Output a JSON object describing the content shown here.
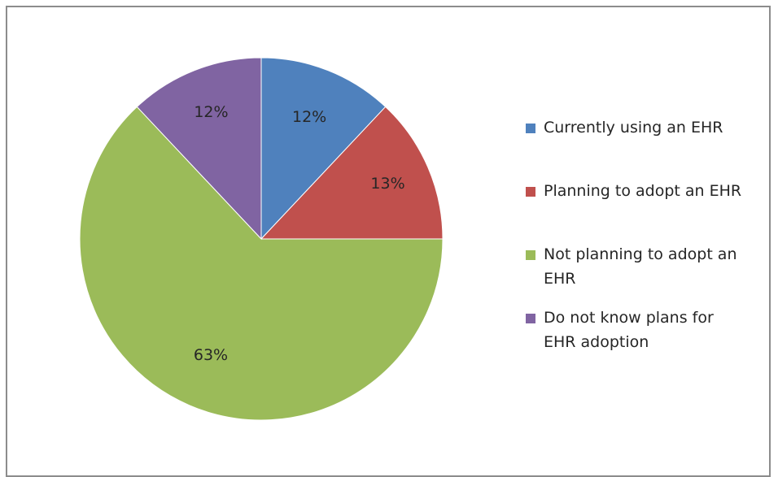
{
  "chart_data": {
    "type": "pie",
    "title": "",
    "slices": [
      {
        "name": "Currently using an EHR",
        "value": 12,
        "label": "12%",
        "color": "#4f81bd"
      },
      {
        "name": "Planning to adopt an EHR",
        "value": 13,
        "label": "13%",
        "color": "#c0504d"
      },
      {
        "name": "Not planning to adopt an EHR",
        "value": 63,
        "label": "63%",
        "color": "#9bbb59"
      },
      {
        "name": "Do not know plans for EHR adoption",
        "value": 12,
        "label": "12%",
        "color": "#8064a2"
      }
    ],
    "start": "12 o'clock",
    "direction": "clockwise",
    "legend": {
      "position": "right"
    }
  }
}
